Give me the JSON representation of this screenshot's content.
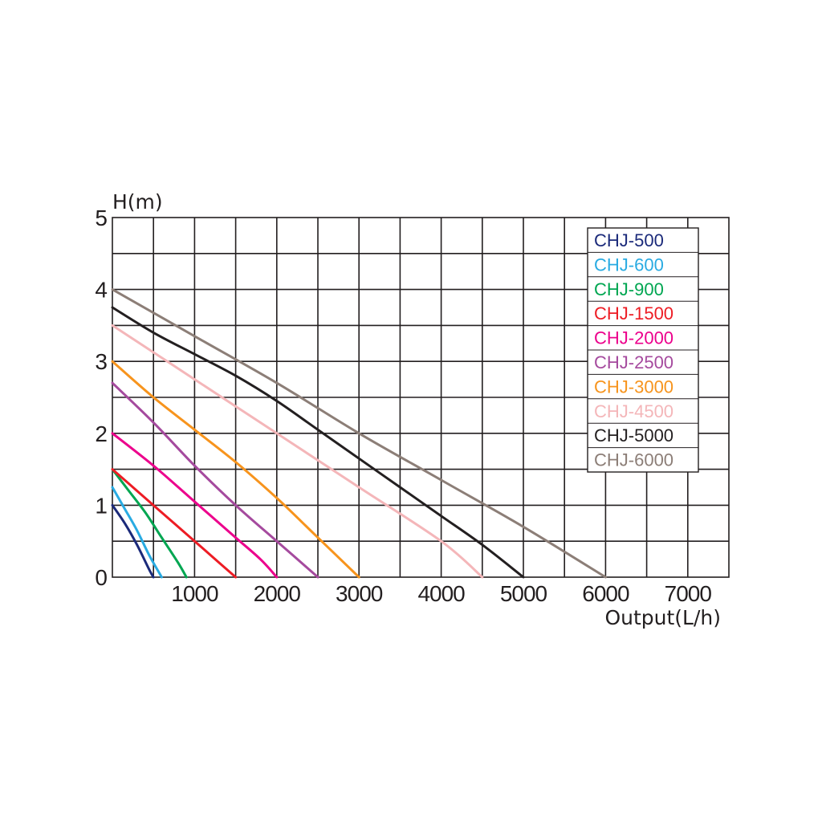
{
  "chart_data": {
    "type": "line",
    "title": "",
    "xlabel": "Output(L/h)",
    "ylabel": "H(m)",
    "xlim": [
      0,
      7500
    ],
    "ylim": [
      0,
      5
    ],
    "x_ticks": [
      1000,
      2000,
      3000,
      4000,
      5000,
      6000,
      7000
    ],
    "x_tick_labels": [
      "1000",
      "2000",
      "3000",
      "4000",
      "5000",
      "6000",
      "7000"
    ],
    "y_ticks": [
      0,
      1,
      2,
      3,
      4,
      5
    ],
    "y_tick_labels": [
      "0",
      "1",
      "2",
      "3",
      "4",
      "5"
    ],
    "grid": true,
    "legend_position": "top-right",
    "series": [
      {
        "name": "CHJ-500",
        "color": "#1b2a7a",
        "x": [
          0,
          150,
          300,
          450,
          500
        ],
        "y": [
          1.0,
          0.75,
          0.45,
          0.1,
          0
        ]
      },
      {
        "name": "CHJ-600",
        "color": "#29abe2",
        "x": [
          0,
          150,
          300,
          450,
          600
        ],
        "y": [
          1.25,
          0.95,
          0.65,
          0.3,
          0
        ]
      },
      {
        "name": "CHJ-900",
        "color": "#00a651",
        "x": [
          0,
          200,
          400,
          600,
          800,
          900
        ],
        "y": [
          1.5,
          1.2,
          0.9,
          0.55,
          0.2,
          0
        ]
      },
      {
        "name": "CHJ-1500",
        "color": "#ed1c24",
        "x": [
          0,
          300,
          600,
          900,
          1200,
          1500
        ],
        "y": [
          1.5,
          1.2,
          0.9,
          0.6,
          0.3,
          0
        ]
      },
      {
        "name": "CHJ-2000",
        "color": "#ec008c",
        "x": [
          0,
          500,
          1000,
          1500,
          1800,
          2000
        ],
        "y": [
          2.0,
          1.55,
          1.05,
          0.55,
          0.25,
          0
        ]
      },
      {
        "name": "CHJ-2500",
        "color": "#a54a9e",
        "x": [
          0,
          500,
          1000,
          1500,
          2000,
          2500
        ],
        "y": [
          2.7,
          2.15,
          1.55,
          1.0,
          0.5,
          0
        ]
      },
      {
        "name": "CHJ-3000",
        "color": "#f7941d",
        "x": [
          0,
          500,
          1000,
          1500,
          2000,
          2500,
          3000
        ],
        "y": [
          3.0,
          2.5,
          2.05,
          1.6,
          1.1,
          0.55,
          0
        ]
      },
      {
        "name": "CHJ-4500",
        "color": "#f4b6b9",
        "x": [
          0,
          1000,
          2000,
          3000,
          4000,
          4500
        ],
        "y": [
          3.5,
          2.75,
          2.0,
          1.25,
          0.5,
          0
        ]
      },
      {
        "name": "CHJ-5000",
        "color": "#231f20",
        "x": [
          0,
          500,
          1000,
          1500,
          2000,
          2500,
          3000,
          3500,
          4000,
          4500,
          5000
        ],
        "y": [
          3.75,
          3.4,
          3.1,
          2.8,
          2.45,
          2.05,
          1.65,
          1.25,
          0.85,
          0.45,
          0
        ]
      },
      {
        "name": "CHJ-6000",
        "color": "#8c7e77",
        "x": [
          0,
          1000,
          2000,
          3000,
          4000,
          5000,
          6000
        ],
        "y": [
          4.0,
          3.35,
          2.7,
          2.0,
          1.35,
          0.7,
          0
        ]
      }
    ]
  }
}
